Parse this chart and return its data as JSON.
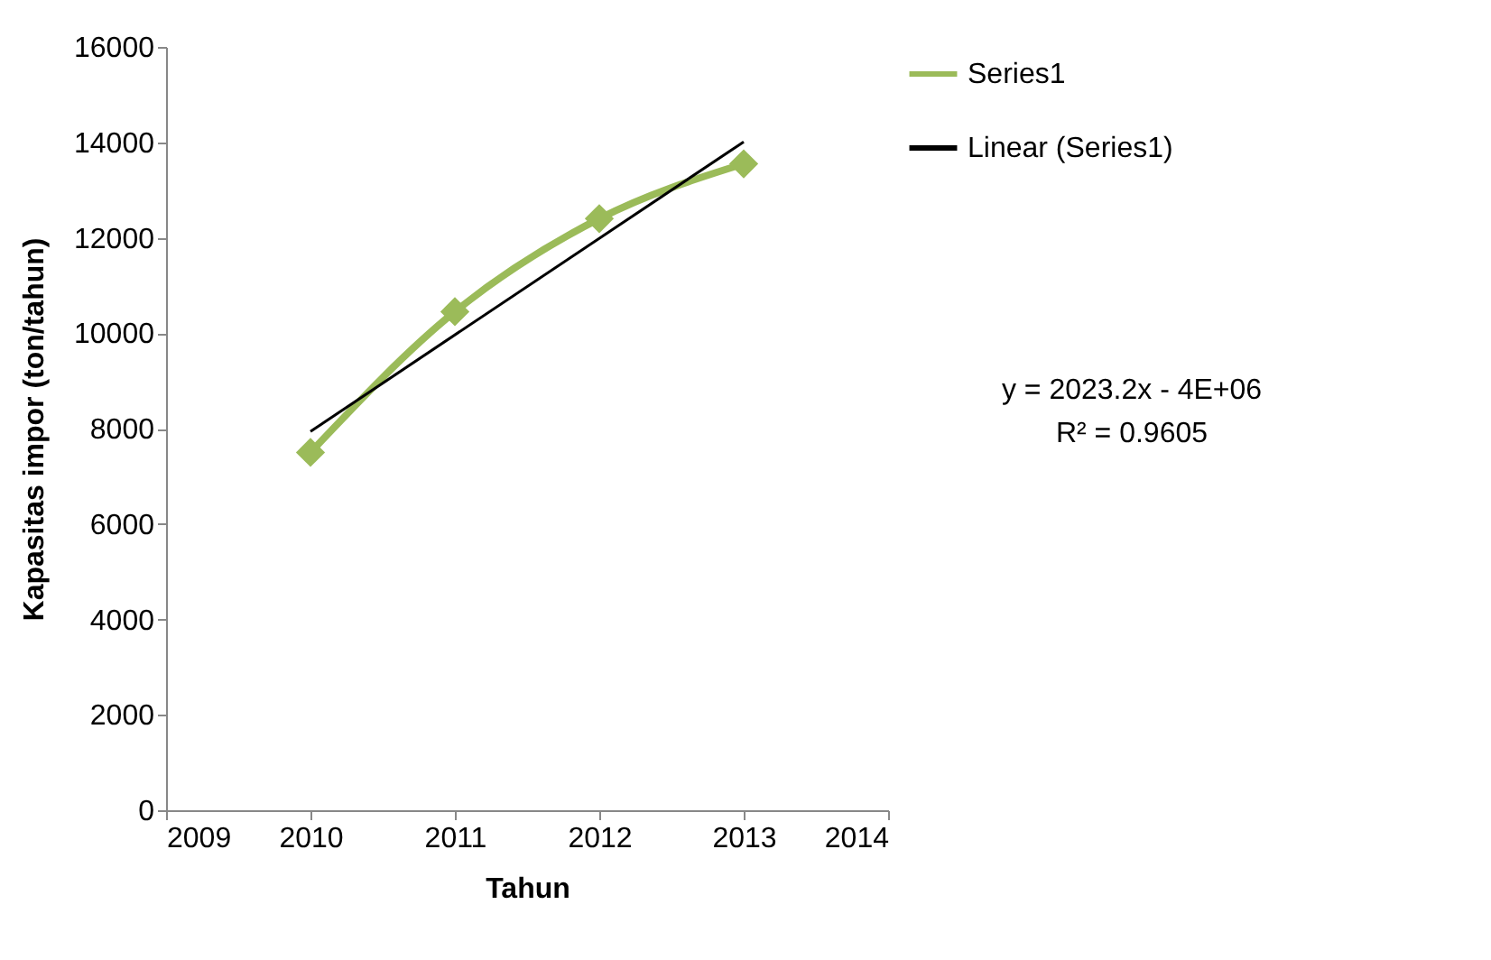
{
  "chart_data": {
    "type": "line",
    "xlabel": "Tahun",
    "ylabel": "Kapasitas  impor (ton/tahun)",
    "x": [
      2010,
      2011,
      2012,
      2013
    ],
    "series": [
      {
        "name": "Series1",
        "color": "#9bbb59",
        "values": [
          7500,
          10450,
          12400,
          13550
        ],
        "marker": "diamond"
      },
      {
        "name": "Linear (Series1)",
        "type": "line",
        "color": "#000000",
        "x": [
          2010,
          2013
        ],
        "values": [
          7940,
          14010
        ],
        "marker": "none"
      }
    ],
    "xlim": [
      2009,
      2014
    ],
    "xticks": [
      2009,
      2010,
      2011,
      2012,
      2013,
      2014
    ],
    "ylim": [
      0,
      16000
    ],
    "yticks": [
      0,
      2000,
      4000,
      6000,
      8000,
      10000,
      12000,
      14000,
      16000
    ],
    "annotations": [
      "y = 2023.2x - 4E+06\nR² = 0.9605"
    ],
    "grid": false,
    "legend": "right"
  }
}
